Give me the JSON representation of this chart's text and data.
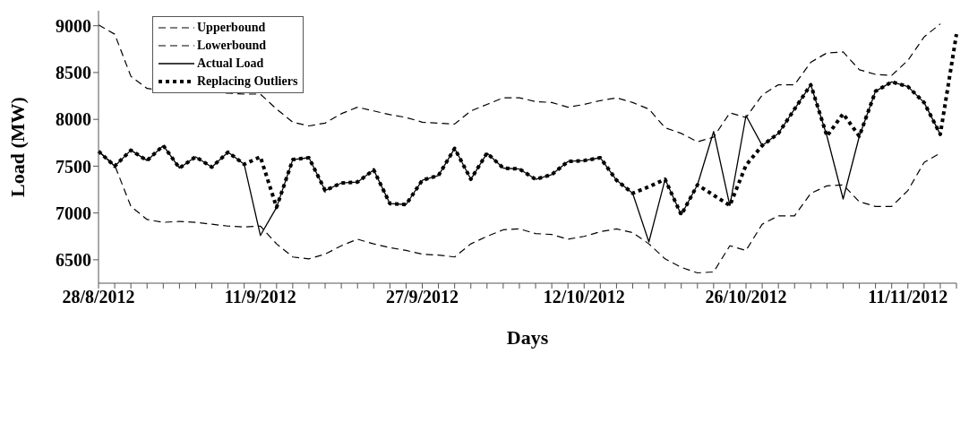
{
  "chart_data": {
    "type": "line",
    "xlabel": "Days",
    "ylabel": "Load (MW)",
    "categories": [
      "28/8/2012",
      null,
      null,
      null,
      null,
      null,
      null,
      null,
      null,
      null,
      "11/9/2012",
      null,
      null,
      null,
      null,
      null,
      null,
      null,
      null,
      null,
      "27/9/2012",
      null,
      null,
      null,
      null,
      null,
      null,
      null,
      null,
      null,
      "12/10/2012",
      null,
      null,
      null,
      null,
      null,
      null,
      null,
      null,
      null,
      "26/10/2012",
      null,
      null,
      null,
      null,
      null,
      null,
      null,
      null,
      null,
      "11/11/2012",
      null,
      null,
      null
    ],
    "ylim": [
      6250,
      9160
    ],
    "yticks": [
      6500,
      7000,
      7500,
      8000,
      8500,
      9000
    ],
    "grid": false,
    "legend": "top left",
    "marker": "none",
    "series": [
      {
        "name": "Upperbound",
        "color": "#000000",
        "line_style": "dashed",
        "values": [
          9010,
          8910,
          8460,
          8330,
          8310,
          8310,
          8310,
          8290,
          8280,
          8270,
          8270,
          8110,
          7970,
          7930,
          7960,
          8060,
          8130,
          8090,
          8050,
          8020,
          7970,
          7960,
          7950,
          8090,
          8160,
          8230,
          8230,
          8190,
          8180,
          8130,
          8160,
          8200,
          8230,
          8180,
          8110,
          7910,
          7850,
          7760,
          7810,
          8070,
          8020,
          8260,
          8370,
          8370,
          8610,
          8710,
          8720,
          8530,
          8480,
          8470,
          8630,
          8880,
          9020,
          null
        ]
      },
      {
        "name": "Lowerbound",
        "color": "#000000",
        "line_style": "dashed",
        "values": [
          7660,
          7510,
          7070,
          6930,
          6900,
          6910,
          6900,
          6880,
          6860,
          6850,
          6860,
          6670,
          6530,
          6510,
          6560,
          6650,
          6720,
          6670,
          6630,
          6600,
          6560,
          6550,
          6530,
          6670,
          6750,
          6820,
          6830,
          6780,
          6770,
          6720,
          6750,
          6800,
          6830,
          6790,
          6670,
          6510,
          6420,
          6360,
          6370,
          6650,
          6600,
          6880,
          6970,
          6970,
          7210,
          7290,
          7300,
          7120,
          7070,
          7070,
          7240,
          7540,
          7640,
          null
        ]
      },
      {
        "name": "Actual Load",
        "color": "#000000",
        "line_style": "solid",
        "values": [
          7660,
          7500,
          7670,
          7560,
          7720,
          7480,
          7600,
          7490,
          7650,
          7520,
          6760,
          7060,
          7570,
          7590,
          7240,
          7320,
          7330,
          7460,
          7100,
          7090,
          7350,
          7400,
          7690,
          7360,
          7640,
          7480,
          7470,
          7360,
          7410,
          7550,
          7560,
          7590,
          7350,
          7210,
          6690,
          7360,
          6980,
          7300,
          7870,
          7080,
          8040,
          7720,
          7850,
          8110,
          8370,
          7820,
          7150,
          7820,
          8300,
          8400,
          8350,
          8180,
          7840,
          null
        ]
      },
      {
        "name": "Replacing Outliers",
        "color": "#000000",
        "line_style": "dotted",
        "values": [
          7660,
          7500,
          7670,
          7560,
          7720,
          7480,
          7600,
          7490,
          7650,
          7520,
          7600,
          7060,
          7570,
          7590,
          7240,
          7320,
          7330,
          7460,
          7100,
          7090,
          7350,
          7400,
          7690,
          7360,
          7640,
          7480,
          7470,
          7360,
          7410,
          7550,
          7560,
          7590,
          7350,
          7210,
          7280,
          7360,
          6980,
          7300,
          7190,
          7080,
          7510,
          7720,
          7850,
          8110,
          8370,
          7820,
          8060,
          7820,
          8300,
          8400,
          8350,
          8180,
          7840,
          8910
        ]
      }
    ]
  }
}
